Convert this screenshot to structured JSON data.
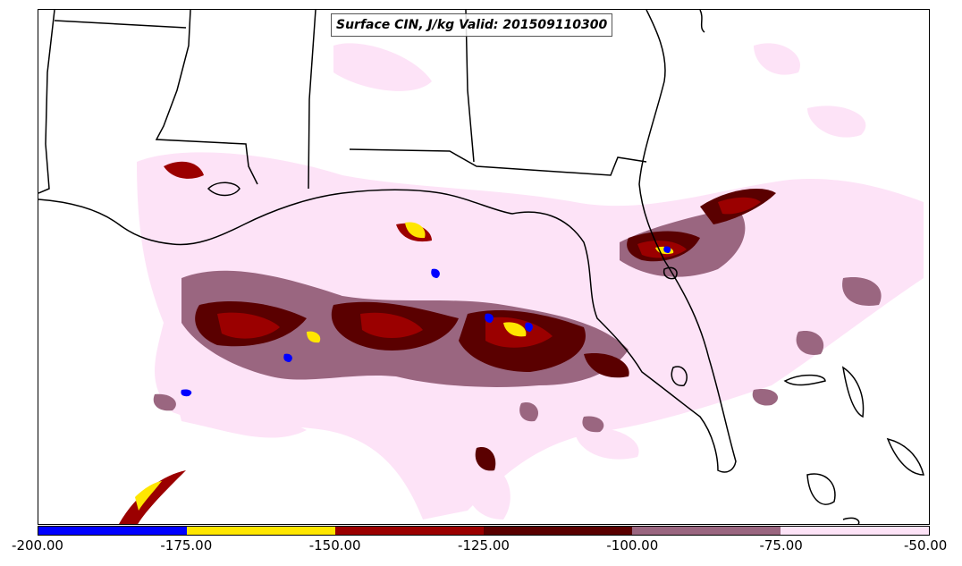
{
  "title": "Surface CIN, J/kg Valid: 201509110300",
  "colorbar": {
    "ticks": [
      "-200.00",
      "-175.00",
      "-150.00",
      "-125.00",
      "-100.00",
      "-75.00",
      "-50.00"
    ],
    "bins": [
      {
        "from": -200,
        "to": -175,
        "color": "#0000ff"
      },
      {
        "from": -175,
        "to": -150,
        "color": "#ffe600"
      },
      {
        "from": -150,
        "to": -125,
        "color": "#9b0000"
      },
      {
        "from": -125,
        "to": -100,
        "color": "#5a0000"
      },
      {
        "from": -100,
        "to": -75,
        "color": "#9a6680"
      },
      {
        "from": -75,
        "to": -50,
        "color": "#fde3f7"
      }
    ]
  }
}
